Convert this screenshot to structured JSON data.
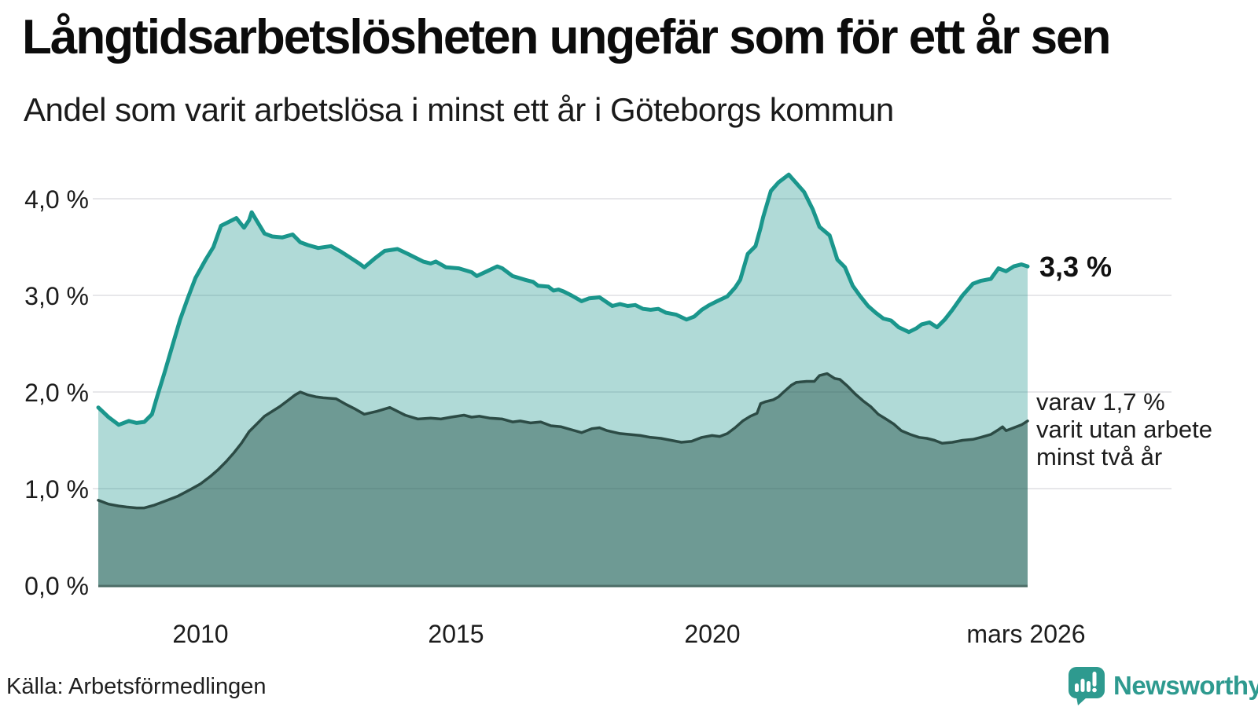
{
  "header": {
    "title": "Långtidsarbetslösheten ungefär som för ett år sen",
    "subtitle": "Andel som varit arbetslösa i minst ett år i Göteborgs kommun"
  },
  "chart_data": {
    "type": "area",
    "unit": "%",
    "grid": true,
    "legend_position": "none",
    "xlim": [
      2008.0,
      2026.2
    ],
    "ylim": [
      0,
      4.5
    ],
    "xlabel": "",
    "ylabel": "",
    "y_ticks": [
      {
        "value": 0,
        "label": "0,0 %"
      },
      {
        "value": 1,
        "label": "1,0 %"
      },
      {
        "value": 2,
        "label": "2,0 %"
      },
      {
        "value": 3,
        "label": "3,0 %"
      },
      {
        "value": 4,
        "label": "4,0 %"
      }
    ],
    "x_ticks": [
      {
        "year": 2010,
        "label": "2010"
      },
      {
        "year": 2015,
        "label": "2015"
      },
      {
        "year": 2020,
        "label": "2020"
      },
      {
        "year": 2026.17,
        "label": "mars 2026"
      }
    ],
    "annotations": {
      "latest_total": "3,3 %",
      "secondary_line1": "varav 1,7 %",
      "secondary_line2": "varit utan arbete",
      "secondary_line3": "minst två år"
    },
    "colors": {
      "line_one_year": "#1a968c",
      "fill_one_year": "rgba(24,148,138,0.34)",
      "line_two_years": "#2c4b45",
      "fill_two_years": "rgba(31,75,66,0.45)",
      "gridline": "#e7e7ea",
      "baseline": "#4d6d67"
    },
    "series": [
      {
        "name": "Arbetslösa minst ett år",
        "latest_value": 3.3,
        "color": "#1a968c",
        "fill": "rgba(24,148,138,0.34)",
        "stroke_width": 5,
        "points": [
          [
            2008.0,
            1.84
          ],
          [
            2008.2,
            1.74
          ],
          [
            2008.4,
            1.66
          ],
          [
            2008.6,
            1.7
          ],
          [
            2008.75,
            1.68
          ],
          [
            2008.9,
            1.69
          ],
          [
            2009.05,
            1.77
          ],
          [
            2009.15,
            1.95
          ],
          [
            2009.3,
            2.21
          ],
          [
            2009.45,
            2.48
          ],
          [
            2009.6,
            2.75
          ],
          [
            2009.75,
            2.97
          ],
          [
            2009.9,
            3.18
          ],
          [
            2010.1,
            3.37
          ],
          [
            2010.25,
            3.5
          ],
          [
            2010.4,
            3.72
          ],
          [
            2010.55,
            3.76
          ],
          [
            2010.7,
            3.8
          ],
          [
            2010.85,
            3.7
          ],
          [
            2010.95,
            3.78
          ],
          [
            2011.0,
            3.86
          ],
          [
            2011.1,
            3.77
          ],
          [
            2011.25,
            3.64
          ],
          [
            2011.4,
            3.61
          ],
          [
            2011.6,
            3.6
          ],
          [
            2011.8,
            3.63
          ],
          [
            2011.95,
            3.55
          ],
          [
            2012.1,
            3.52
          ],
          [
            2012.3,
            3.49
          ],
          [
            2012.55,
            3.51
          ],
          [
            2012.75,
            3.45
          ],
          [
            2012.9,
            3.4
          ],
          [
            2013.1,
            3.33
          ],
          [
            2013.2,
            3.29
          ],
          [
            2013.4,
            3.38
          ],
          [
            2013.6,
            3.46
          ],
          [
            2013.85,
            3.48
          ],
          [
            2014.05,
            3.43
          ],
          [
            2014.2,
            3.39
          ],
          [
            2014.35,
            3.35
          ],
          [
            2014.5,
            3.33
          ],
          [
            2014.6,
            3.35
          ],
          [
            2014.8,
            3.29
          ],
          [
            2015.05,
            3.28
          ],
          [
            2015.3,
            3.24
          ],
          [
            2015.4,
            3.2
          ],
          [
            2015.6,
            3.25
          ],
          [
            2015.8,
            3.3
          ],
          [
            2015.9,
            3.28
          ],
          [
            2016.1,
            3.2
          ],
          [
            2016.35,
            3.16
          ],
          [
            2016.5,
            3.14
          ],
          [
            2016.6,
            3.1
          ],
          [
            2016.8,
            3.09
          ],
          [
            2016.9,
            3.05
          ],
          [
            2017.0,
            3.06
          ],
          [
            2017.1,
            3.04
          ],
          [
            2017.25,
            3.0
          ],
          [
            2017.35,
            2.97
          ],
          [
            2017.45,
            2.94
          ],
          [
            2017.6,
            2.97
          ],
          [
            2017.8,
            2.98
          ],
          [
            2018.05,
            2.89
          ],
          [
            2018.2,
            2.91
          ],
          [
            2018.35,
            2.89
          ],
          [
            2018.5,
            2.9
          ],
          [
            2018.65,
            2.86
          ],
          [
            2018.8,
            2.85
          ],
          [
            2018.95,
            2.86
          ],
          [
            2019.1,
            2.82
          ],
          [
            2019.3,
            2.8
          ],
          [
            2019.5,
            2.75
          ],
          [
            2019.65,
            2.78
          ],
          [
            2019.8,
            2.85
          ],
          [
            2019.95,
            2.9
          ],
          [
            2020.1,
            2.94
          ],
          [
            2020.3,
            2.99
          ],
          [
            2020.45,
            3.08
          ],
          [
            2020.55,
            3.16
          ],
          [
            2020.7,
            3.43
          ],
          [
            2020.85,
            3.51
          ],
          [
            2020.95,
            3.7
          ],
          [
            2021.0,
            3.81
          ],
          [
            2021.15,
            4.08
          ],
          [
            2021.3,
            4.17
          ],
          [
            2021.5,
            4.25
          ],
          [
            2021.7,
            4.13
          ],
          [
            2021.8,
            4.07
          ],
          [
            2021.97,
            3.89
          ],
          [
            2022.1,
            3.71
          ],
          [
            2022.3,
            3.62
          ],
          [
            2022.45,
            3.37
          ],
          [
            2022.6,
            3.29
          ],
          [
            2022.75,
            3.1
          ],
          [
            2022.9,
            2.99
          ],
          [
            2023.05,
            2.89
          ],
          [
            2023.2,
            2.82
          ],
          [
            2023.35,
            2.76
          ],
          [
            2023.5,
            2.74
          ],
          [
            2023.65,
            2.67
          ],
          [
            2023.85,
            2.62
          ],
          [
            2024.0,
            2.66
          ],
          [
            2024.1,
            2.7
          ],
          [
            2024.25,
            2.72
          ],
          [
            2024.4,
            2.67
          ],
          [
            2024.55,
            2.75
          ],
          [
            2024.7,
            2.85
          ],
          [
            2024.9,
            3.0
          ],
          [
            2025.1,
            3.12
          ],
          [
            2025.25,
            3.15
          ],
          [
            2025.45,
            3.17
          ],
          [
            2025.6,
            3.28
          ],
          [
            2025.75,
            3.25
          ],
          [
            2025.9,
            3.3
          ],
          [
            2026.05,
            3.32
          ],
          [
            2026.17,
            3.3
          ]
        ]
      },
      {
        "name": "varav utan arbete minst två år",
        "latest_value": 1.7,
        "color": "#2c4b45",
        "fill": "rgba(31,75,66,0.45)",
        "stroke_width": 3.5,
        "points": [
          [
            2008.0,
            0.88
          ],
          [
            2008.2,
            0.84
          ],
          [
            2008.4,
            0.82
          ],
          [
            2008.55,
            0.81
          ],
          [
            2008.75,
            0.8
          ],
          [
            2008.9,
            0.8
          ],
          [
            2009.1,
            0.83
          ],
          [
            2009.3,
            0.87
          ],
          [
            2009.55,
            0.92
          ],
          [
            2009.8,
            0.99
          ],
          [
            2010.0,
            1.05
          ],
          [
            2010.2,
            1.13
          ],
          [
            2010.35,
            1.2
          ],
          [
            2010.5,
            1.28
          ],
          [
            2010.65,
            1.37
          ],
          [
            2010.8,
            1.47
          ],
          [
            2010.95,
            1.59
          ],
          [
            2011.1,
            1.67
          ],
          [
            2011.25,
            1.75
          ],
          [
            2011.4,
            1.8
          ],
          [
            2011.55,
            1.85
          ],
          [
            2011.7,
            1.91
          ],
          [
            2011.85,
            1.97
          ],
          [
            2011.95,
            2.0
          ],
          [
            2012.1,
            1.97
          ],
          [
            2012.25,
            1.95
          ],
          [
            2012.4,
            1.94
          ],
          [
            2012.65,
            1.93
          ],
          [
            2012.85,
            1.87
          ],
          [
            2013.0,
            1.83
          ],
          [
            2013.2,
            1.77
          ],
          [
            2013.45,
            1.8
          ],
          [
            2013.7,
            1.84
          ],
          [
            2013.85,
            1.8
          ],
          [
            2014.0,
            1.76
          ],
          [
            2014.25,
            1.72
          ],
          [
            2014.5,
            1.73
          ],
          [
            2014.7,
            1.72
          ],
          [
            2014.9,
            1.74
          ],
          [
            2015.15,
            1.76
          ],
          [
            2015.3,
            1.74
          ],
          [
            2015.45,
            1.75
          ],
          [
            2015.65,
            1.73
          ],
          [
            2015.9,
            1.72
          ],
          [
            2016.1,
            1.69
          ],
          [
            2016.25,
            1.7
          ],
          [
            2016.45,
            1.68
          ],
          [
            2016.65,
            1.69
          ],
          [
            2016.85,
            1.65
          ],
          [
            2017.05,
            1.64
          ],
          [
            2017.25,
            1.61
          ],
          [
            2017.45,
            1.58
          ],
          [
            2017.65,
            1.62
          ],
          [
            2017.8,
            1.63
          ],
          [
            2017.95,
            1.6
          ],
          [
            2018.2,
            1.57
          ],
          [
            2018.4,
            1.56
          ],
          [
            2018.6,
            1.55
          ],
          [
            2018.8,
            1.53
          ],
          [
            2019.0,
            1.52
          ],
          [
            2019.2,
            1.5
          ],
          [
            2019.4,
            1.48
          ],
          [
            2019.6,
            1.49
          ],
          [
            2019.8,
            1.53
          ],
          [
            2020.0,
            1.55
          ],
          [
            2020.15,
            1.54
          ],
          [
            2020.3,
            1.57
          ],
          [
            2020.45,
            1.63
          ],
          [
            2020.6,
            1.7
          ],
          [
            2020.75,
            1.75
          ],
          [
            2020.88,
            1.78
          ],
          [
            2020.95,
            1.88
          ],
          [
            2021.05,
            1.9
          ],
          [
            2021.2,
            1.92
          ],
          [
            2021.3,
            1.95
          ],
          [
            2021.4,
            2.0
          ],
          [
            2021.55,
            2.07
          ],
          [
            2021.65,
            2.1
          ],
          [
            2021.85,
            2.11
          ],
          [
            2022.0,
            2.11
          ],
          [
            2022.1,
            2.17
          ],
          [
            2022.25,
            2.19
          ],
          [
            2022.4,
            2.14
          ],
          [
            2022.5,
            2.13
          ],
          [
            2022.65,
            2.06
          ],
          [
            2022.8,
            1.98
          ],
          [
            2022.95,
            1.91
          ],
          [
            2023.1,
            1.85
          ],
          [
            2023.25,
            1.77
          ],
          [
            2023.4,
            1.72
          ],
          [
            2023.55,
            1.67
          ],
          [
            2023.7,
            1.6
          ],
          [
            2023.88,
            1.56
          ],
          [
            2024.05,
            1.53
          ],
          [
            2024.2,
            1.52
          ],
          [
            2024.35,
            1.5
          ],
          [
            2024.5,
            1.47
          ],
          [
            2024.7,
            1.48
          ],
          [
            2024.9,
            1.5
          ],
          [
            2025.1,
            1.51
          ],
          [
            2025.25,
            1.53
          ],
          [
            2025.45,
            1.56
          ],
          [
            2025.6,
            1.61
          ],
          [
            2025.68,
            1.64
          ],
          [
            2025.75,
            1.6
          ],
          [
            2025.9,
            1.63
          ],
          [
            2026.05,
            1.66
          ],
          [
            2026.17,
            1.7
          ]
        ]
      }
    ]
  },
  "footer": {
    "source": "Källa: Arbetsförmedlingen",
    "logo_text": "Newsworthy"
  }
}
